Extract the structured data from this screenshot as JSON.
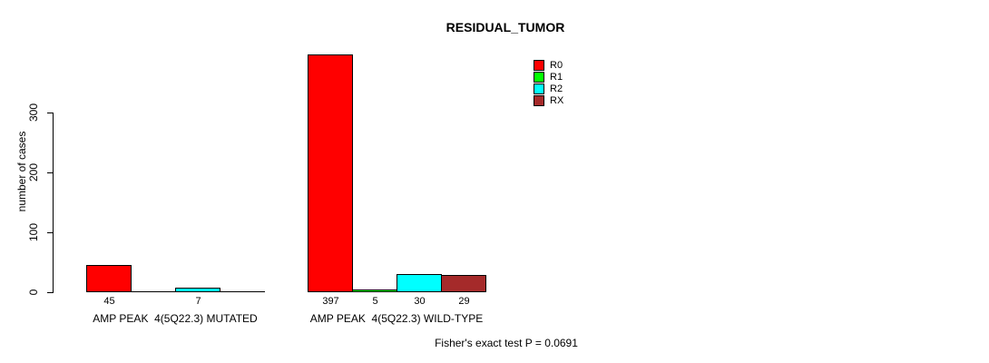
{
  "chart_data": {
    "type": "bar",
    "title": "RESIDUAL_TUMOR",
    "ylabel": "number of cases",
    "xlabel": "",
    "yticks": [
      0,
      100,
      200,
      300
    ],
    "ylim": [
      0,
      397
    ],
    "grid": false,
    "legend_position": "top-right",
    "legend": [
      {
        "label": "R0",
        "color": "#FF0000"
      },
      {
        "label": "R1",
        "color": "#00FF00"
      },
      {
        "label": "R2",
        "color": "#00FFFF"
      },
      {
        "label": "RX",
        "color": "#A52A2A"
      }
    ],
    "groups": [
      {
        "label": "AMP PEAK  4(5Q22.3) MUTATED",
        "values": [
          45,
          0,
          7,
          0
        ],
        "value_labels": [
          "45",
          "",
          "7",
          ""
        ]
      },
      {
        "label": "AMP PEAK  4(5Q22.3) WILD-TYPE",
        "values": [
          397,
          5,
          30,
          29
        ],
        "value_labels": [
          "397",
          "5",
          "30",
          "29"
        ]
      }
    ],
    "footnote": "Fisher's exact test P = 0.0691"
  },
  "colors": {
    "background": "#FFFFFF",
    "axis": "#000000",
    "bar_border": "#000000",
    "text": "#000000"
  }
}
